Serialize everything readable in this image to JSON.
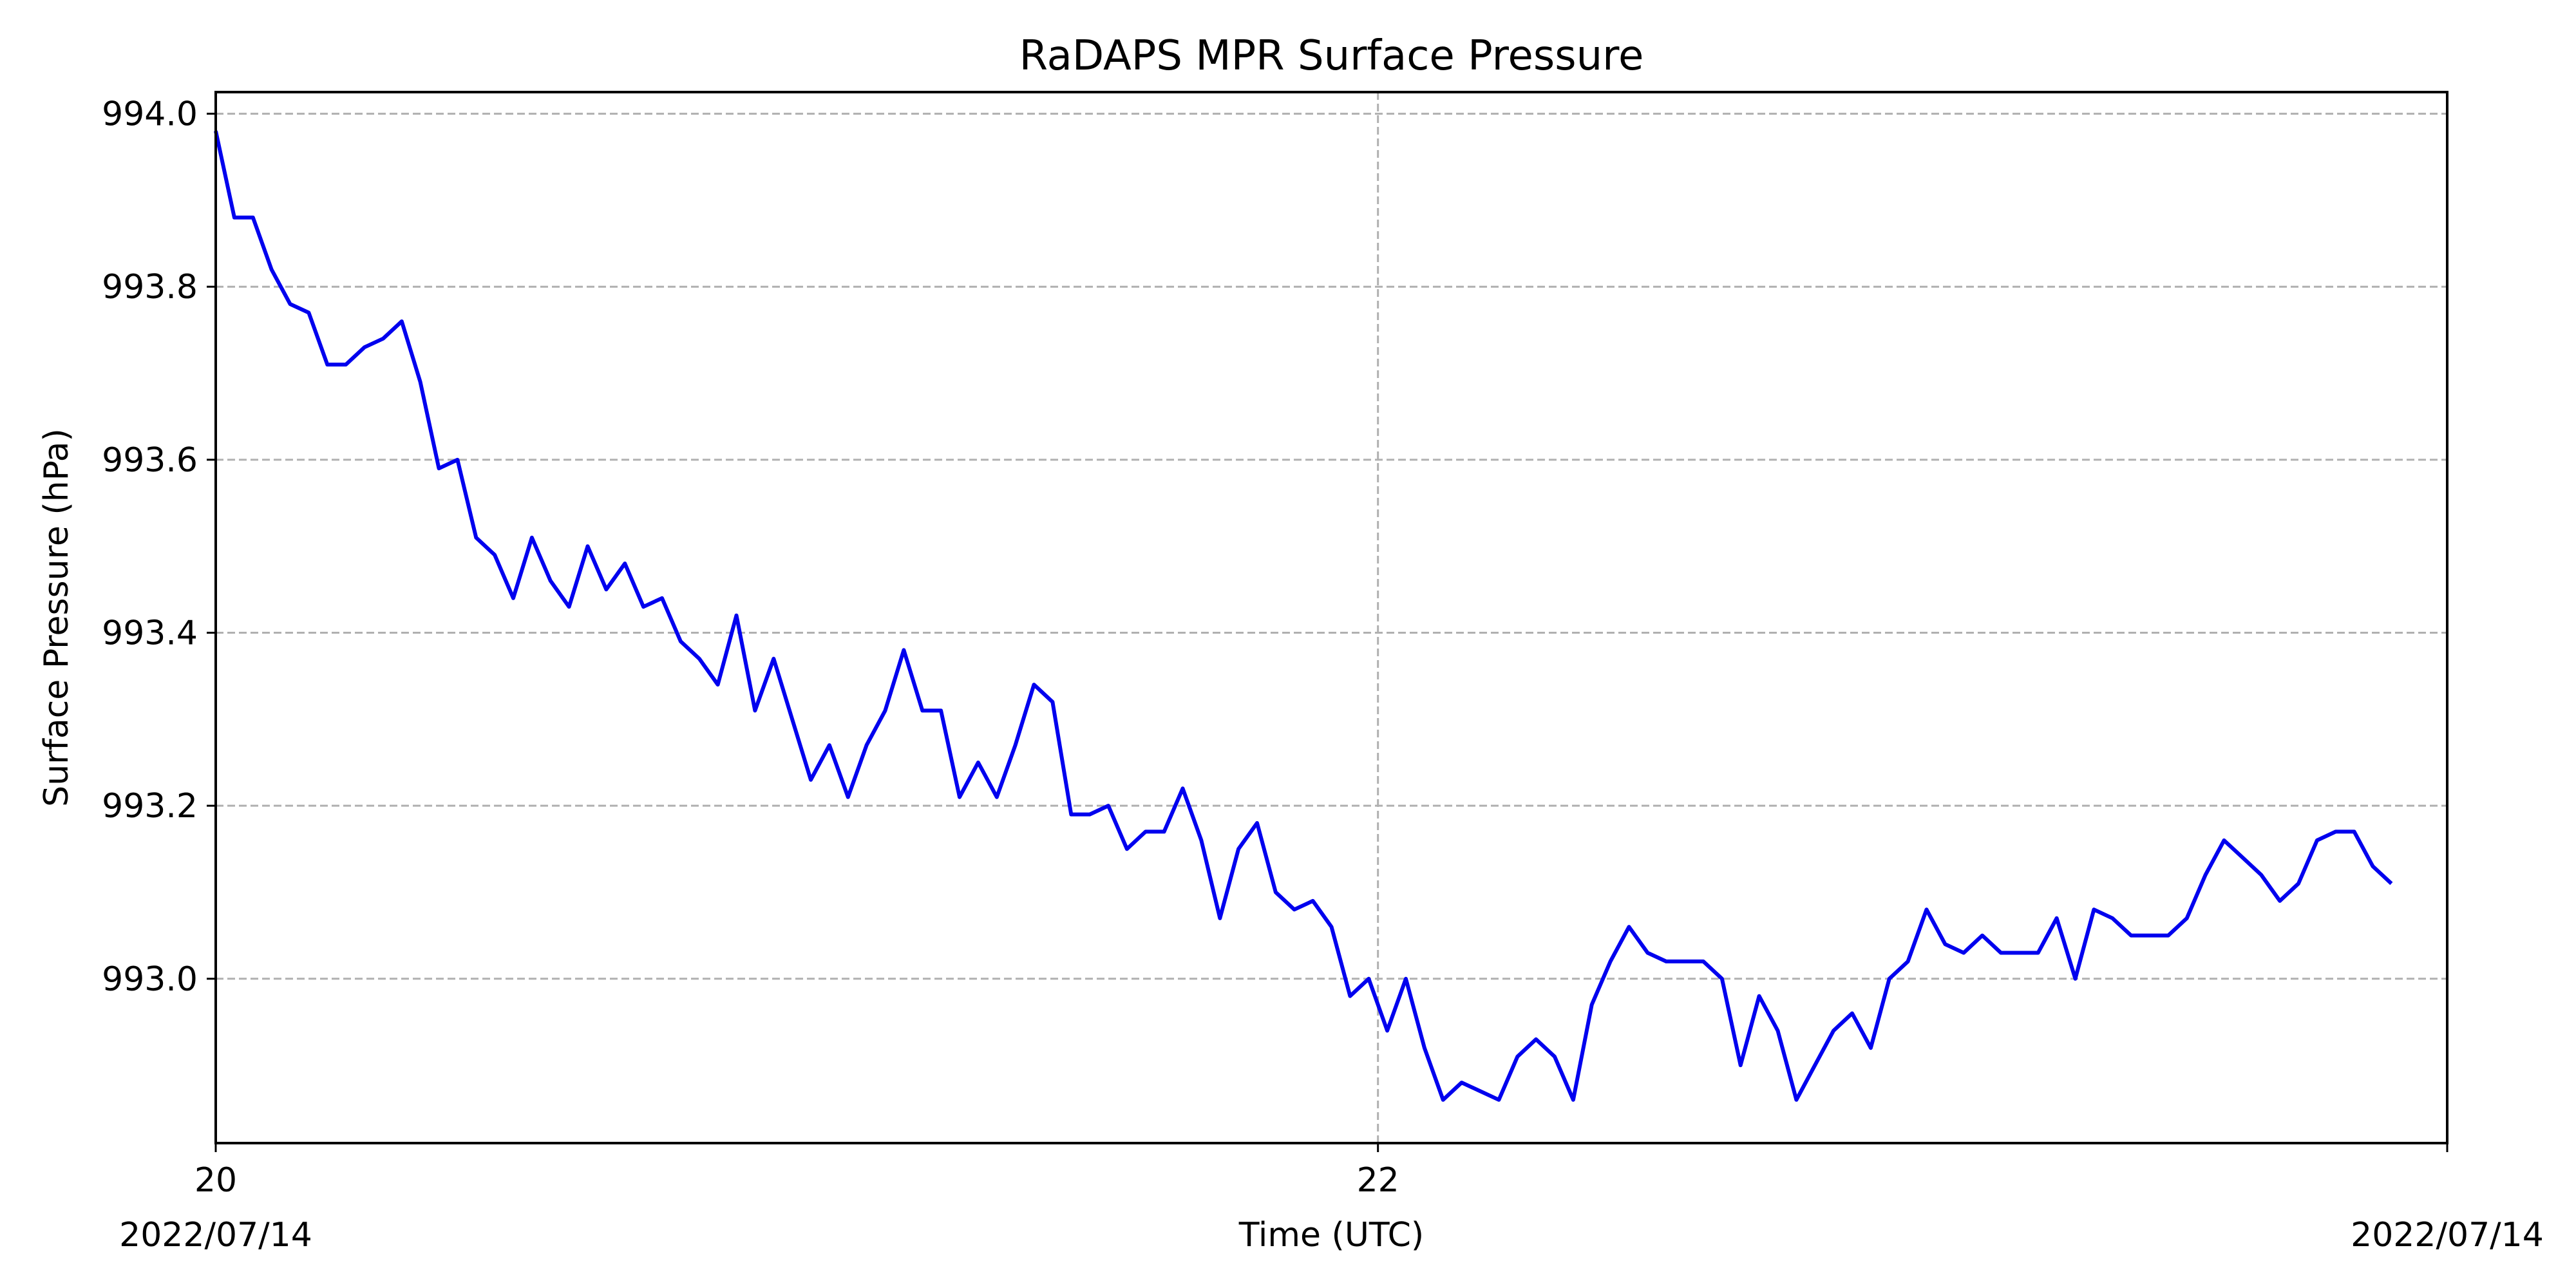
{
  "chart_data": {
    "type": "line",
    "title": "RaDAPS MPR Surface Pressure",
    "xlabel": "Time (UTC)",
    "ylabel": "Surface Pressure (hPa)",
    "x_unit": "hours UTC on 2022/07/14",
    "xlim": [
      20,
      23.84
    ],
    "ylim": [
      992.81,
      994.025
    ],
    "grid": true,
    "x_ticks": [
      {
        "value": 20,
        "label": "20",
        "sublabel": "2022/07/14"
      },
      {
        "value": 22,
        "label": "22",
        "sublabel": ""
      },
      {
        "value": 23.84,
        "label": "",
        "sublabel": "2022/07/14"
      }
    ],
    "y_ticks": [
      {
        "value": 993.0,
        "label": "993.0"
      },
      {
        "value": 993.2,
        "label": "993.2"
      },
      {
        "value": 993.4,
        "label": "993.4"
      },
      {
        "value": 993.6,
        "label": "993.6"
      },
      {
        "value": 993.8,
        "label": "993.8"
      },
      {
        "value": 994.0,
        "label": "994.0"
      }
    ],
    "colors": {
      "series": "#0000ee",
      "grid": "#b0b0b0",
      "axes": "#000000"
    },
    "series": [
      {
        "x_start": 20,
        "x_step": 0.032,
        "values": [
          993.98,
          993.88,
          993.88,
          993.82,
          993.78,
          993.77,
          993.71,
          993.71,
          993.73,
          993.74,
          993.76,
          993.69,
          993.59,
          993.6,
          993.51,
          993.49,
          993.44,
          993.51,
          993.46,
          993.43,
          993.5,
          993.45,
          993.48,
          993.43,
          993.44,
          993.39,
          993.37,
          993.34,
          993.42,
          993.31,
          993.37,
          993.3,
          993.23,
          993.27,
          993.21,
          993.27,
          993.31,
          993.38,
          993.31,
          993.31,
          993.21,
          993.25,
          993.21,
          993.27,
          993.34,
          993.32,
          993.19,
          993.19,
          993.2,
          993.15,
          993.17,
          993.17,
          993.22,
          993.16,
          993.07,
          993.15,
          993.18,
          993.1,
          993.08,
          993.09,
          993.06,
          992.98,
          993.0,
          992.94,
          993.0,
          992.92,
          992.86,
          992.88,
          992.87,
          992.86,
          992.91,
          992.93,
          992.91,
          992.86,
          992.97,
          993.02,
          993.06,
          993.03,
          993.02,
          993.02,
          993.02,
          993.0,
          992.9,
          992.98,
          992.94,
          992.86,
          992.9,
          992.94,
          992.96,
          992.92,
          993.0,
          993.02,
          993.08,
          993.04,
          993.03,
          993.05,
          993.03,
          993.03,
          993.03,
          993.07,
          993.0,
          993.08,
          993.07,
          993.05,
          993.05,
          993.05,
          993.07,
          993.12,
          993.16,
          993.14,
          993.12,
          993.09,
          993.11,
          993.16,
          993.17,
          993.17,
          993.13,
          993.11
        ]
      }
    ]
  }
}
